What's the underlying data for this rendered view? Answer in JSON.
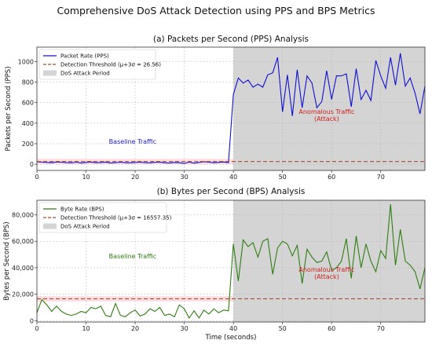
{
  "suptitle": "Comprehensive DoS Attack Detection using PPS and BPS Metrics",
  "chart_data": [
    {
      "type": "line",
      "title": "(a) Packets per Second (PPS) Analysis",
      "xlabel": "",
      "ylabel": "Packets per Second (PPS)",
      "xlim": [
        0,
        79
      ],
      "ylim": [
        -60,
        1140
      ],
      "xticks": [
        0,
        10,
        20,
        30,
        40,
        50,
        60,
        70
      ],
      "yticks": [
        0,
        200,
        400,
        600,
        800,
        1000
      ],
      "ytick_labels": [
        "0",
        "200",
        "400",
        "600",
        "800",
        "1000"
      ],
      "grid": true,
      "legend_position": "upper-left",
      "x": [
        0,
        1,
        2,
        3,
        4,
        5,
        6,
        7,
        8,
        9,
        10,
        11,
        12,
        13,
        14,
        15,
        16,
        17,
        18,
        19,
        20,
        21,
        22,
        23,
        24,
        25,
        26,
        27,
        28,
        29,
        30,
        31,
        32,
        33,
        34,
        35,
        36,
        37,
        38,
        39,
        40,
        41,
        42,
        43,
        44,
        45,
        46,
        47,
        48,
        49,
        50,
        51,
        52,
        53,
        54,
        55,
        56,
        57,
        58,
        59,
        60,
        61,
        62,
        63,
        64,
        65,
        66,
        67,
        68,
        69,
        70,
        71,
        72,
        73,
        74,
        75,
        76,
        77,
        78,
        79
      ],
      "series": [
        {
          "name": "Packet Rate (PPS)",
          "color": "#1010d0",
          "values": [
            25,
            20,
            18,
            15,
            22,
            20,
            16,
            14,
            20,
            12,
            18,
            22,
            15,
            17,
            21,
            12,
            16,
            20,
            15,
            14,
            18,
            20,
            16,
            13,
            19,
            21,
            14,
            12,
            18,
            15,
            8,
            22,
            10,
            18,
            25,
            20,
            15,
            18,
            22,
            16,
            680,
            840,
            790,
            820,
            750,
            780,
            750,
            870,
            890,
            1040,
            510,
            870,
            470,
            920,
            550,
            860,
            790,
            550,
            610,
            910,
            630,
            860,
            860,
            880,
            560,
            930,
            630,
            720,
            620,
            1010,
            860,
            740,
            1040,
            770,
            1080,
            760,
            840,
            690,
            490,
            760
          ]
        },
        {
          "name": "Detection Threshold (μ+3σ = 26.56)",
          "color": "#a0522d",
          "dashed": true,
          "y_const": 26.56
        }
      ],
      "shaded": {
        "name": "DoS Attack Period",
        "x_range": [
          40,
          79
        ],
        "color": "#d4d4d4"
      },
      "annotations": [
        {
          "text": "Baseline Traffic",
          "x": 19.5,
          "y": 200,
          "color": "#1a1ad0"
        },
        {
          "text": "Anomalous Traffic\n(Attack)",
          "x": 59,
          "y": 490,
          "color": "#d02020"
        }
      ]
    },
    {
      "type": "line",
      "title": "(b) Bytes per Second (BPS) Analysis",
      "xlabel": "Time (seconds)",
      "ylabel": "Bytes per Second (BPS)",
      "xlim": [
        0,
        79
      ],
      "ylim": [
        -1000,
        91000
      ],
      "xticks": [
        0,
        10,
        20,
        30,
        40,
        50,
        60,
        70
      ],
      "yticks": [
        0,
        20000,
        40000,
        60000,
        80000
      ],
      "ytick_labels": [
        "0",
        "20,000",
        "40,000",
        "60,000",
        "80,000"
      ],
      "grid": true,
      "legend_position": "upper-left",
      "x": [
        0,
        1,
        2,
        3,
        4,
        5,
        6,
        7,
        8,
        9,
        10,
        11,
        12,
        13,
        14,
        15,
        16,
        17,
        18,
        19,
        20,
        21,
        22,
        23,
        24,
        25,
        26,
        27,
        28,
        29,
        30,
        31,
        32,
        33,
        34,
        35,
        36,
        37,
        38,
        39,
        40,
        41,
        42,
        43,
        44,
        45,
        46,
        47,
        48,
        49,
        50,
        51,
        52,
        53,
        54,
        55,
        56,
        57,
        58,
        59,
        60,
        61,
        62,
        63,
        64,
        65,
        66,
        67,
        68,
        69,
        70,
        71,
        72,
        73,
        74,
        75,
        76,
        77,
        78,
        79
      ],
      "series": [
        {
          "name": "Byte Rate (BPS)",
          "color": "#2e7d12",
          "values": [
            6000,
            16000,
            12000,
            7000,
            11000,
            7000,
            5000,
            4000,
            5000,
            7000,
            6000,
            10000,
            9000,
            11000,
            4000,
            3000,
            13000,
            4000,
            3000,
            6000,
            8000,
            3500,
            5000,
            9000,
            7000,
            10000,
            4000,
            5000,
            3000,
            12000,
            9000,
            2000,
            7500,
            2000,
            8000,
            5000,
            9000,
            6000,
            8000,
            7500,
            58000,
            30000,
            61000,
            56000,
            59000,
            48000,
            60000,
            62000,
            35000,
            55000,
            60000,
            58000,
            49000,
            57000,
            28000,
            54000,
            48000,
            44000,
            45000,
            52000,
            38000,
            40000,
            45000,
            62000,
            32000,
            64000,
            40000,
            58000,
            45000,
            37000,
            53000,
            47000,
            88000,
            42000,
            69000,
            45000,
            42000,
            37000,
            24000,
            40000
          ]
        },
        {
          "name": "Detection Threshold (μ+3σ = 16557.35)",
          "color": "#a0522d",
          "dashed": true,
          "y_const": 16557.35
        }
      ],
      "shaded": {
        "name": "DoS Attack Period",
        "x_range": [
          40,
          79
        ],
        "color": "#d4d4d4"
      },
      "annotations": [
        {
          "text": "Baseline Traffic",
          "x": 19.5,
          "y": 47000,
          "color": "#2e7d12"
        },
        {
          "text": "Anomalous Traffic\n(Attack)",
          "x": 59,
          "y": 37000,
          "color": "#d02020"
        }
      ]
    }
  ]
}
